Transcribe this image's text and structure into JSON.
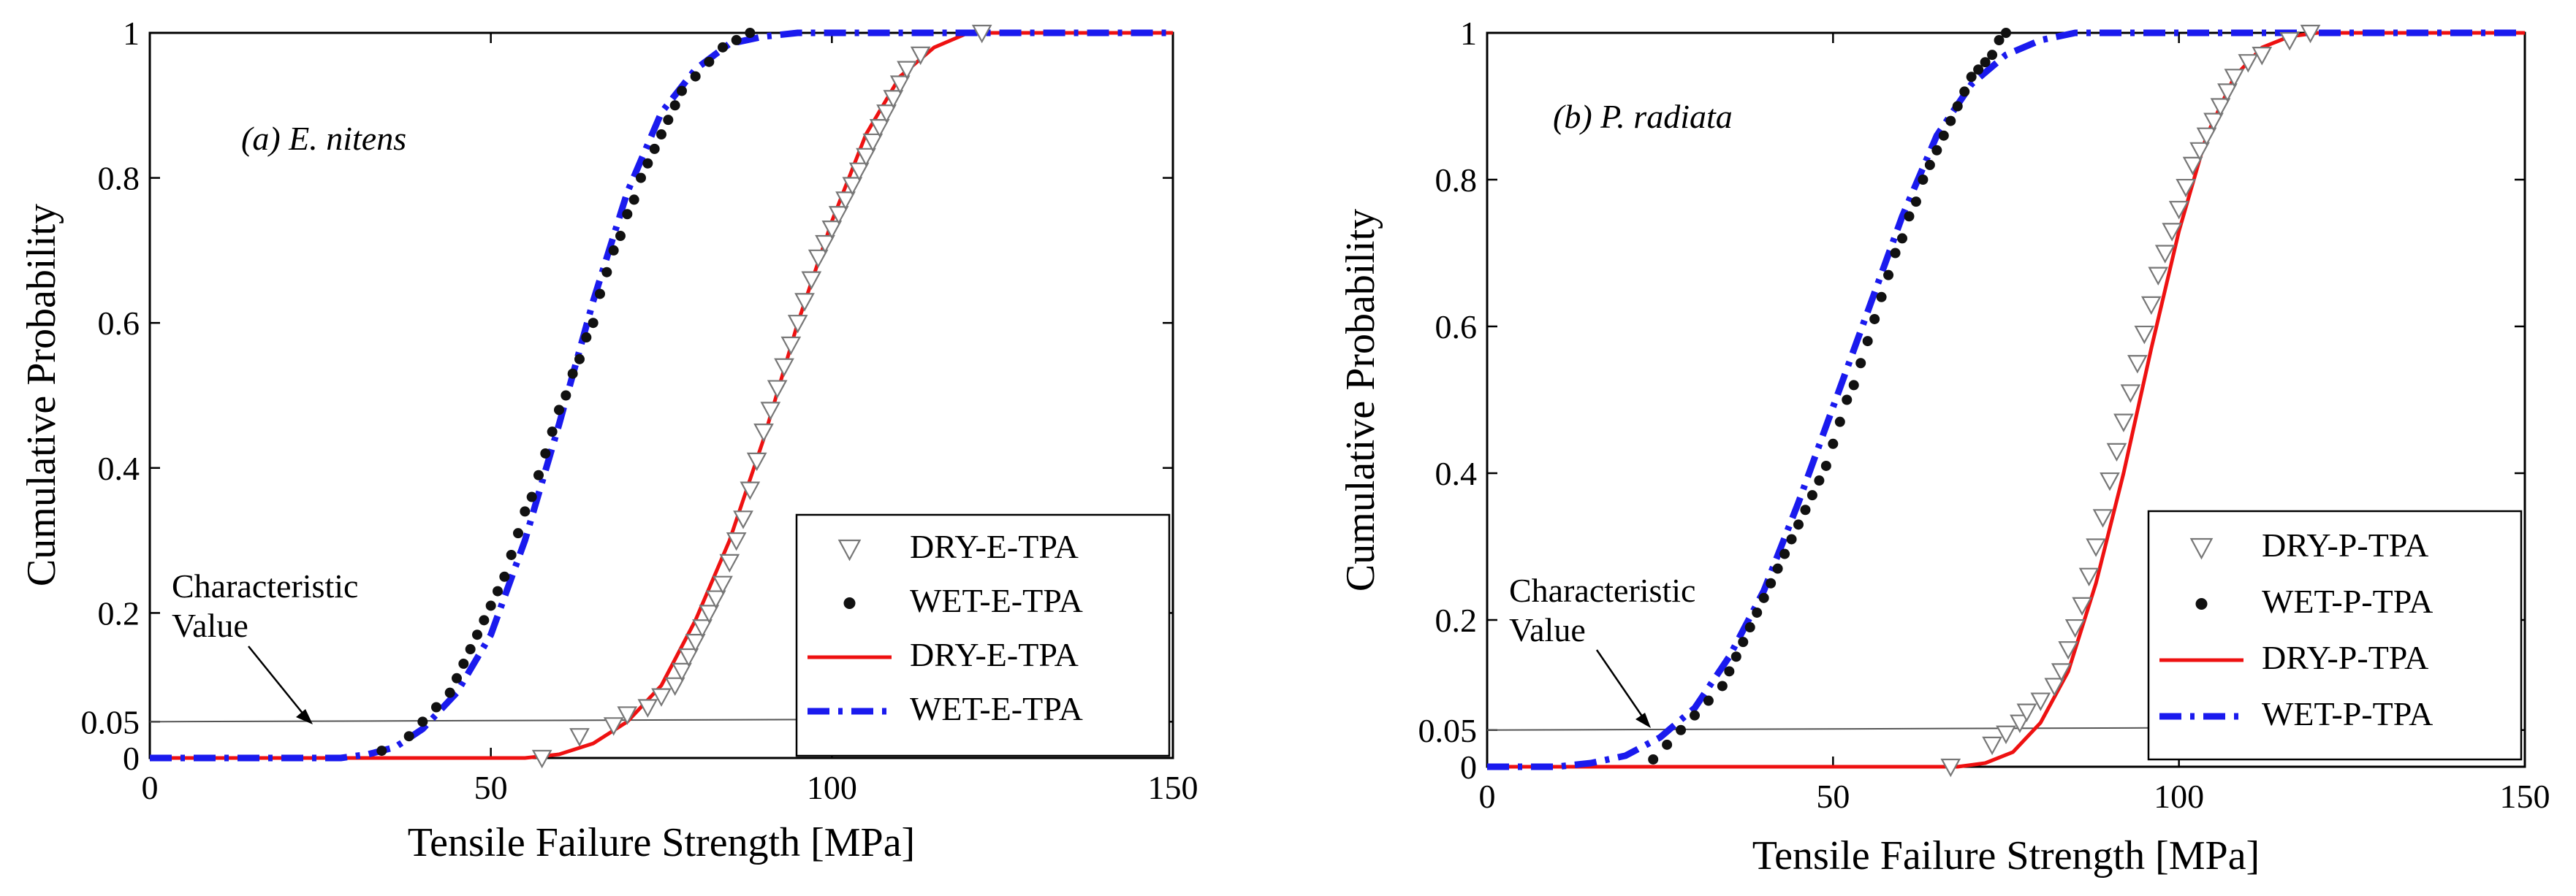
{
  "chart_data": [
    {
      "type": "line",
      "panel_label": "(a) E. nitens",
      "xlabel": "Tensile Failure Strength [MPa]",
      "ylabel": "Cumulative Probability",
      "xlim": [
        0,
        150
      ],
      "ylim": [
        0,
        1
      ],
      "xticks": [
        0,
        50,
        100,
        150
      ],
      "yticks": [
        0,
        0.05,
        0.2,
        0.4,
        0.6,
        0.8,
        1
      ],
      "ytick_labels": [
        "0",
        "0.05",
        "0.2",
        "0.4",
        "0.6",
        "0.8",
        "1"
      ],
      "grid": false,
      "legend_position": "bottom-right",
      "characteristic_value_label": [
        "Characteristic",
        "Value"
      ],
      "characteristic_level": 0.05,
      "series": [
        {
          "name": "DRY-E-TPA",
          "kind": "markers",
          "marker": "triangle-down",
          "x": [
            57.5,
            63,
            68,
            70,
            73,
            75,
            77,
            78,
            79,
            80,
            81,
            82,
            83,
            84,
            85,
            86,
            87,
            88,
            89,
            90,
            91,
            92,
            93,
            94,
            95,
            96,
            97,
            98,
            99,
            100,
            101,
            102,
            103,
            104,
            105,
            106,
            107,
            108,
            109,
            110,
            111,
            113,
            122
          ],
          "y": [
            0.0,
            0.03,
            0.045,
            0.06,
            0.07,
            0.085,
            0.1,
            0.12,
            0.14,
            0.16,
            0.18,
            0.2,
            0.22,
            0.24,
            0.27,
            0.3,
            0.33,
            0.37,
            0.41,
            0.45,
            0.48,
            0.51,
            0.54,
            0.57,
            0.6,
            0.63,
            0.66,
            0.69,
            0.71,
            0.73,
            0.75,
            0.77,
            0.79,
            0.81,
            0.83,
            0.85,
            0.87,
            0.89,
            0.91,
            0.93,
            0.95,
            0.97,
            1.0
          ]
        },
        {
          "name": "WET-E-TPA",
          "kind": "markers",
          "marker": "dot",
          "x": [
            34,
            38,
            40,
            42,
            44,
            45,
            46,
            47,
            48,
            49,
            50,
            51,
            52,
            53,
            54,
            55,
            56,
            57,
            58,
            59,
            60,
            61,
            62,
            63,
            64,
            65,
            66,
            67,
            68,
            69,
            70,
            71,
            72,
            73,
            74,
            75,
            76,
            77,
            78,
            80,
            82,
            84,
            86,
            88
          ],
          "y": [
            0.01,
            0.03,
            0.05,
            0.07,
            0.09,
            0.11,
            0.13,
            0.15,
            0.17,
            0.19,
            0.21,
            0.23,
            0.25,
            0.28,
            0.31,
            0.34,
            0.36,
            0.39,
            0.42,
            0.45,
            0.48,
            0.5,
            0.53,
            0.55,
            0.58,
            0.6,
            0.64,
            0.67,
            0.7,
            0.72,
            0.75,
            0.77,
            0.8,
            0.82,
            0.84,
            0.86,
            0.88,
            0.9,
            0.92,
            0.94,
            0.96,
            0.98,
            0.99,
            1.0
          ]
        },
        {
          "name": "DRY-E-TPA",
          "kind": "line",
          "color": "#ee1111",
          "style": "solid",
          "x": [
            0,
            55,
            60,
            65,
            70,
            75,
            80,
            85,
            90,
            95,
            100,
            105,
            110,
            115,
            120,
            150
          ],
          "y": [
            0,
            0.0,
            0.005,
            0.02,
            0.05,
            0.1,
            0.19,
            0.3,
            0.44,
            0.6,
            0.74,
            0.86,
            0.94,
            0.98,
            1.0,
            1.0
          ]
        },
        {
          "name": "WET-E-TPA",
          "kind": "line",
          "color": "#1a1aee",
          "style": "dashdot",
          "x": [
            0,
            28,
            32,
            36,
            40,
            45,
            50,
            55,
            60,
            65,
            70,
            75,
            80,
            85,
            90,
            95,
            100,
            150
          ],
          "y": [
            0,
            0.0,
            0.005,
            0.015,
            0.04,
            0.09,
            0.17,
            0.3,
            0.46,
            0.63,
            0.78,
            0.89,
            0.95,
            0.985,
            0.995,
            1.0,
            1.0,
            1.0
          ]
        }
      ]
    },
    {
      "type": "line",
      "panel_label": "(b) P. radiata",
      "xlabel": "Tensile Failure Strength [MPa]",
      "ylabel": "Cumulative Probability",
      "xlim": [
        0,
        150
      ],
      "ylim": [
        0,
        1
      ],
      "xticks": [
        0,
        50,
        100,
        150
      ],
      "yticks": [
        0,
        0.05,
        0.2,
        0.4,
        0.6,
        0.8,
        1
      ],
      "ytick_labels": [
        "0",
        "0.05",
        "0.2",
        "0.4",
        "0.6",
        "0.8",
        "1"
      ],
      "grid": false,
      "legend_position": "bottom-right",
      "characteristic_value_label": [
        "Characteristic",
        "Value"
      ],
      "characteristic_level": 0.05,
      "series": [
        {
          "name": "DRY-P-TPA",
          "kind": "markers",
          "marker": "triangle-down",
          "x": [
            67,
            73,
            75,
            77,
            78,
            80,
            82,
            83,
            84,
            85,
            86,
            87,
            88,
            89,
            90,
            91,
            92,
            93,
            94,
            95,
            96,
            97,
            98,
            99,
            100,
            101,
            102,
            103,
            104,
            105,
            106,
            107,
            108,
            110,
            112,
            116,
            119
          ],
          "y": [
            0.0,
            0.03,
            0.045,
            0.06,
            0.075,
            0.09,
            0.11,
            0.13,
            0.16,
            0.19,
            0.22,
            0.26,
            0.3,
            0.34,
            0.39,
            0.43,
            0.47,
            0.51,
            0.55,
            0.59,
            0.63,
            0.67,
            0.7,
            0.73,
            0.76,
            0.79,
            0.82,
            0.84,
            0.86,
            0.88,
            0.9,
            0.92,
            0.94,
            0.96,
            0.97,
            0.99,
            1.0
          ]
        },
        {
          "name": "WET-P-TPA",
          "kind": "markers",
          "marker": "dot",
          "x": [
            24,
            26,
            28,
            30,
            32,
            34,
            35,
            36,
            37,
            38,
            39,
            40,
            41,
            42,
            43,
            44,
            45,
            46,
            47,
            48,
            49,
            50,
            51,
            52,
            53,
            54,
            55,
            56,
            57,
            58,
            59,
            60,
            61,
            62,
            63,
            64,
            65,
            66,
            67,
            68,
            69,
            70,
            71,
            72,
            73,
            74,
            75
          ],
          "y": [
            0.01,
            0.03,
            0.05,
            0.07,
            0.09,
            0.11,
            0.13,
            0.15,
            0.17,
            0.19,
            0.21,
            0.23,
            0.25,
            0.27,
            0.29,
            0.31,
            0.33,
            0.35,
            0.37,
            0.39,
            0.41,
            0.44,
            0.47,
            0.5,
            0.52,
            0.55,
            0.58,
            0.61,
            0.64,
            0.67,
            0.7,
            0.72,
            0.75,
            0.77,
            0.8,
            0.82,
            0.84,
            0.86,
            0.88,
            0.9,
            0.92,
            0.94,
            0.95,
            0.96,
            0.97,
            0.99,
            1.0
          ]
        },
        {
          "name": "DRY-P-TPA",
          "kind": "line",
          "color": "#ee1111",
          "style": "solid",
          "x": [
            0,
            68,
            72,
            76,
            80,
            84,
            88,
            92,
            96,
            100,
            104,
            108,
            112,
            116,
            120,
            150
          ],
          "y": [
            0,
            0.0,
            0.005,
            0.02,
            0.06,
            0.13,
            0.25,
            0.4,
            0.57,
            0.73,
            0.86,
            0.94,
            0.98,
            0.995,
            1.0,
            1.0
          ]
        },
        {
          "name": "WET-P-TPA",
          "kind": "line",
          "color": "#1a1aee",
          "style": "dashdot",
          "x": [
            0,
            10,
            15,
            20,
            25,
            30,
            35,
            40,
            45,
            50,
            55,
            60,
            65,
            70,
            75,
            80,
            85,
            90,
            150
          ],
          "y": [
            0,
            0.0,
            0.005,
            0.015,
            0.04,
            0.08,
            0.15,
            0.24,
            0.36,
            0.49,
            0.62,
            0.75,
            0.86,
            0.93,
            0.97,
            0.99,
            1.0,
            1.0,
            1.0
          ]
        }
      ]
    }
  ]
}
